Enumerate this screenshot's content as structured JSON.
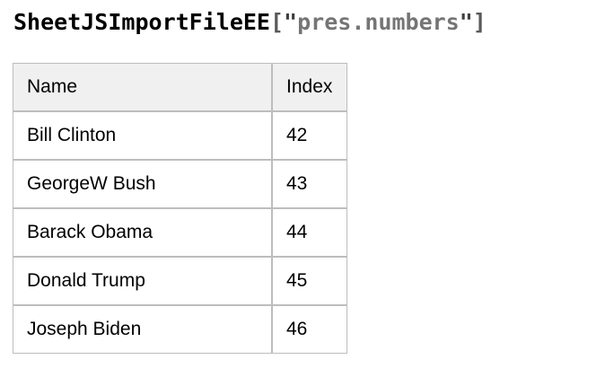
{
  "title": {
    "name": "SheetJSImportFileEE",
    "bracket_open": "[",
    "quote": "\"",
    "string": "pres.numbers",
    "bracket_close": "]"
  },
  "table": {
    "columns": [
      "Name",
      "Index"
    ],
    "rows": [
      {
        "name": "Bill Clinton",
        "index": "42"
      },
      {
        "name": "GeorgeW Bush",
        "index": "43"
      },
      {
        "name": "Barack Obama",
        "index": "44"
      },
      {
        "name": "Donald Trump",
        "index": "45"
      },
      {
        "name": "Joseph Biden",
        "index": "46"
      }
    ]
  },
  "colors": {
    "text": "#000000",
    "string_text": "#757575",
    "quote_text": "#3f3f3f",
    "bracket_text": "#5a5a5a",
    "table_border": "#bdbdbd",
    "header_background": "#f0f0f0",
    "page_background": "#ffffff"
  }
}
